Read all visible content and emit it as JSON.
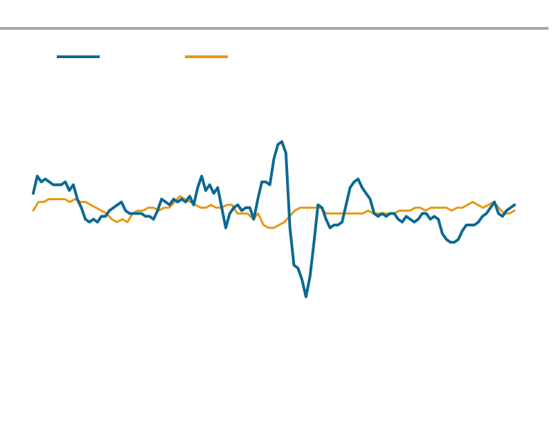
{
  "chart_data": {
    "type": "line",
    "title": "",
    "xlabel": "",
    "ylabel": "",
    "grid": false,
    "legend": "top-left",
    "ylim": [
      0,
      100
    ],
    "series": [
      {
        "name": "",
        "color": "#0a6a94",
        "values": [
          58,
          64,
          62,
          63,
          62,
          61,
          61,
          61,
          62,
          59,
          61,
          56,
          53,
          49,
          48,
          49,
          48,
          50,
          50,
          52,
          53,
          54,
          55,
          52,
          51,
          51,
          51,
          51,
          50,
          50,
          49,
          52,
          56,
          55,
          54,
          56,
          55,
          56,
          55,
          57,
          54,
          60,
          64,
          59,
          61,
          58,
          60,
          53,
          46,
          51,
          53,
          54,
          52,
          53,
          53,
          49,
          56,
          62,
          62,
          61,
          70,
          75,
          76,
          72,
          46,
          33,
          32,
          28,
          22,
          29,
          41,
          54,
          53,
          49,
          46,
          47,
          47,
          48,
          54,
          60,
          62,
          63,
          60,
          58,
          56,
          51,
          50,
          51,
          50,
          51,
          51,
          49,
          48,
          50,
          49,
          48,
          49,
          51,
          51,
          49,
          50,
          49,
          44,
          42,
          41,
          41,
          42,
          45,
          47,
          47,
          47,
          48,
          50,
          51,
          53,
          55,
          51,
          50,
          52,
          53,
          54
        ]
      },
      {
        "name": "",
        "color": "#e8960f",
        "values": [
          52,
          55,
          55,
          56,
          56,
          56,
          56,
          55,
          56,
          55,
          55,
          54,
          53,
          52,
          51,
          49,
          48,
          49,
          48,
          51,
          52,
          52,
          53,
          53,
          52,
          53,
          53,
          55,
          57,
          56,
          55,
          54,
          53,
          53,
          54,
          53,
          53,
          54,
          54,
          51,
          51,
          51,
          49,
          51,
          47,
          46,
          46,
          47,
          48,
          50,
          52,
          53,
          53,
          53,
          53,
          53,
          51,
          51,
          51,
          51,
          51,
          51,
          51,
          51,
          52,
          51,
          51,
          51,
          51,
          51,
          52,
          52,
          52,
          53,
          53,
          52,
          53,
          53,
          53,
          53,
          52,
          53,
          53,
          54,
          55,
          54,
          53,
          54,
          55,
          53,
          51,
          51,
          52
        ]
      }
    ]
  }
}
